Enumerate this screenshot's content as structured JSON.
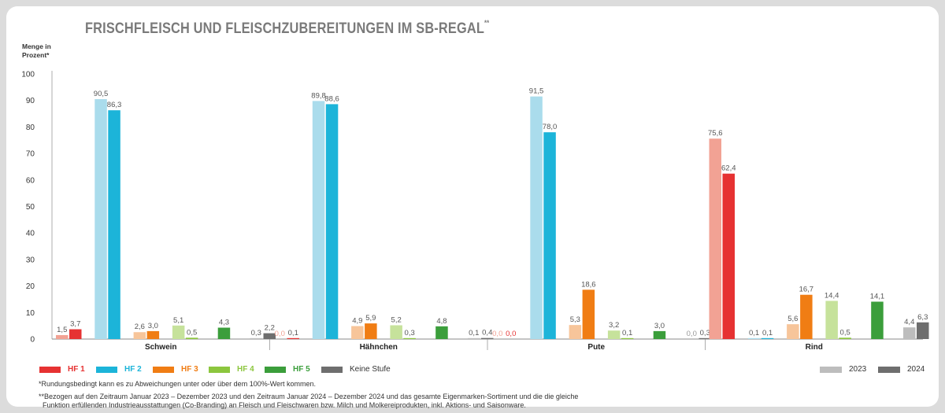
{
  "title": "FRISCHFLEISCH UND FLEISCHZUBEREITUNGEN IM SB-REGAL",
  "title_sup": "**",
  "ylabel_line1": "Menge in",
  "ylabel_line2": "Prozent*",
  "chart_data": {
    "type": "bar",
    "ylim": [
      0,
      100
    ],
    "yticks": [
      0,
      10,
      20,
      30,
      40,
      50,
      60,
      70,
      80,
      90,
      100
    ],
    "groups": [
      "Schwein",
      "Hähnchen",
      "Pute",
      "Rind"
    ],
    "series": [
      {
        "name": "HF 1",
        "color": "#e63232",
        "light": "#f2a294",
        "values2023": [
          "1,5",
          "0,0",
          "0,0",
          "75,6"
        ],
        "values2024": [
          "3,7",
          "0,1",
          "0,0",
          "62,4"
        ]
      },
      {
        "name": "HF 2",
        "color": "#1cb4d9",
        "light": "#aadcec",
        "values2023": [
          "90,5",
          "89,8",
          "91,5",
          "0,1"
        ],
        "values2024": [
          "86,3",
          "88,6",
          "78,0",
          "0,1"
        ]
      },
      {
        "name": "HF 3",
        "color": "#f07d14",
        "light": "#f7c59a",
        "values2023": [
          "2,6",
          "4,9",
          "5,3",
          "5,6"
        ],
        "values2024": [
          "3,0",
          "5,9",
          "18,6",
          "16,7"
        ]
      },
      {
        "name": "HF 4",
        "color": "#8cc63e",
        "light": "#c6e29b",
        "values2023": [
          "5,1",
          "5,2",
          "3,2",
          "14,4"
        ],
        "values2024": [
          "0,5",
          "0,3",
          "0,1",
          "0,5"
        ]
      },
      {
        "name": "HF 5",
        "color": "#3b9e3b",
        "light": "#3b9e3b",
        "values2023": [
          null,
          null,
          null,
          null
        ],
        "values2024": [
          "4,3",
          "4,8",
          "3,0",
          "14,1"
        ]
      },
      {
        "name": "Keine Stufe",
        "color": "#6e6e6e",
        "light": "#bdbdbd",
        "values2023": [
          "0,3",
          "0,1",
          "0,0",
          "4,4"
        ],
        "values2024": [
          "2,2",
          "0,4",
          "0,3",
          "6,3"
        ]
      }
    ],
    "years": [
      "2023",
      "2024"
    ],
    "year_colors": [
      "#bdbdbd",
      "#6e6e6e"
    ]
  },
  "legend": {
    "hf1": "HF 1",
    "hf2": "HF 2",
    "hf3": "HF 3",
    "hf4": "HF 4",
    "hf5": "HF 5",
    "keine": "Keine Stufe",
    "y2023": "2023",
    "y2024": "2024"
  },
  "colors": {
    "hf1": "#e63232",
    "hf2": "#1cb4d9",
    "hf3": "#f07d14",
    "hf4": "#8cc63e",
    "hf5": "#3b9e3b",
    "keine": "#6e6e6e",
    "y2023": "#bdbdbd",
    "y2024": "#6e6e6e"
  },
  "footnotes": {
    "f1": "*Rundungsbedingt kann es zu Abweichungen unter oder über dem 100%-Wert kommen.",
    "f2a": "**Bezogen auf den Zeitraum Januar 2023 – Dezember 2023 und den Zeitraum Januar 2024 – Dezember 2024 und das gesamte Eigenmarken-Sortiment und die die gleiche",
    "f2b": "Funktion erfüllenden Industrieausstattungen (Co-Branding) an Fleisch und Fleischwaren bzw. Milch und Molkereiprodukten, inkl. Aktions- und Saisonware."
  }
}
